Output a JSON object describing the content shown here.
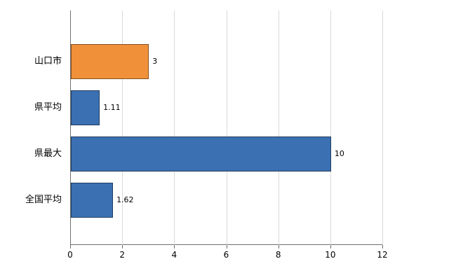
{
  "chart_data": {
    "type": "bar",
    "orientation": "horizontal",
    "title": "",
    "categories": [
      "山口市",
      "県平均",
      "県最大",
      "全国平均"
    ],
    "values": [
      3,
      1.11,
      10,
      1.62
    ],
    "value_labels": [
      "3",
      "1.11",
      "10",
      "1.62"
    ],
    "bar_colors": [
      "#f0913a",
      "#3b70b2",
      "#3b70b2",
      "#3b70b2"
    ],
    "xlim": [
      0,
      12
    ],
    "x_ticks": [
      0,
      2,
      4,
      6,
      8,
      10,
      12
    ],
    "x_tick_labels": [
      "0",
      "2",
      "4",
      "6",
      "8",
      "10",
      "12"
    ],
    "grid": true,
    "legend_position": "none"
  },
  "colors": {
    "background": "#ffffff",
    "grid": "#d9d9d9",
    "axis": "#6e6e6e",
    "text": "#000000",
    "bar_orange": "#f0913a",
    "bar_blue": "#3b70b2"
  }
}
